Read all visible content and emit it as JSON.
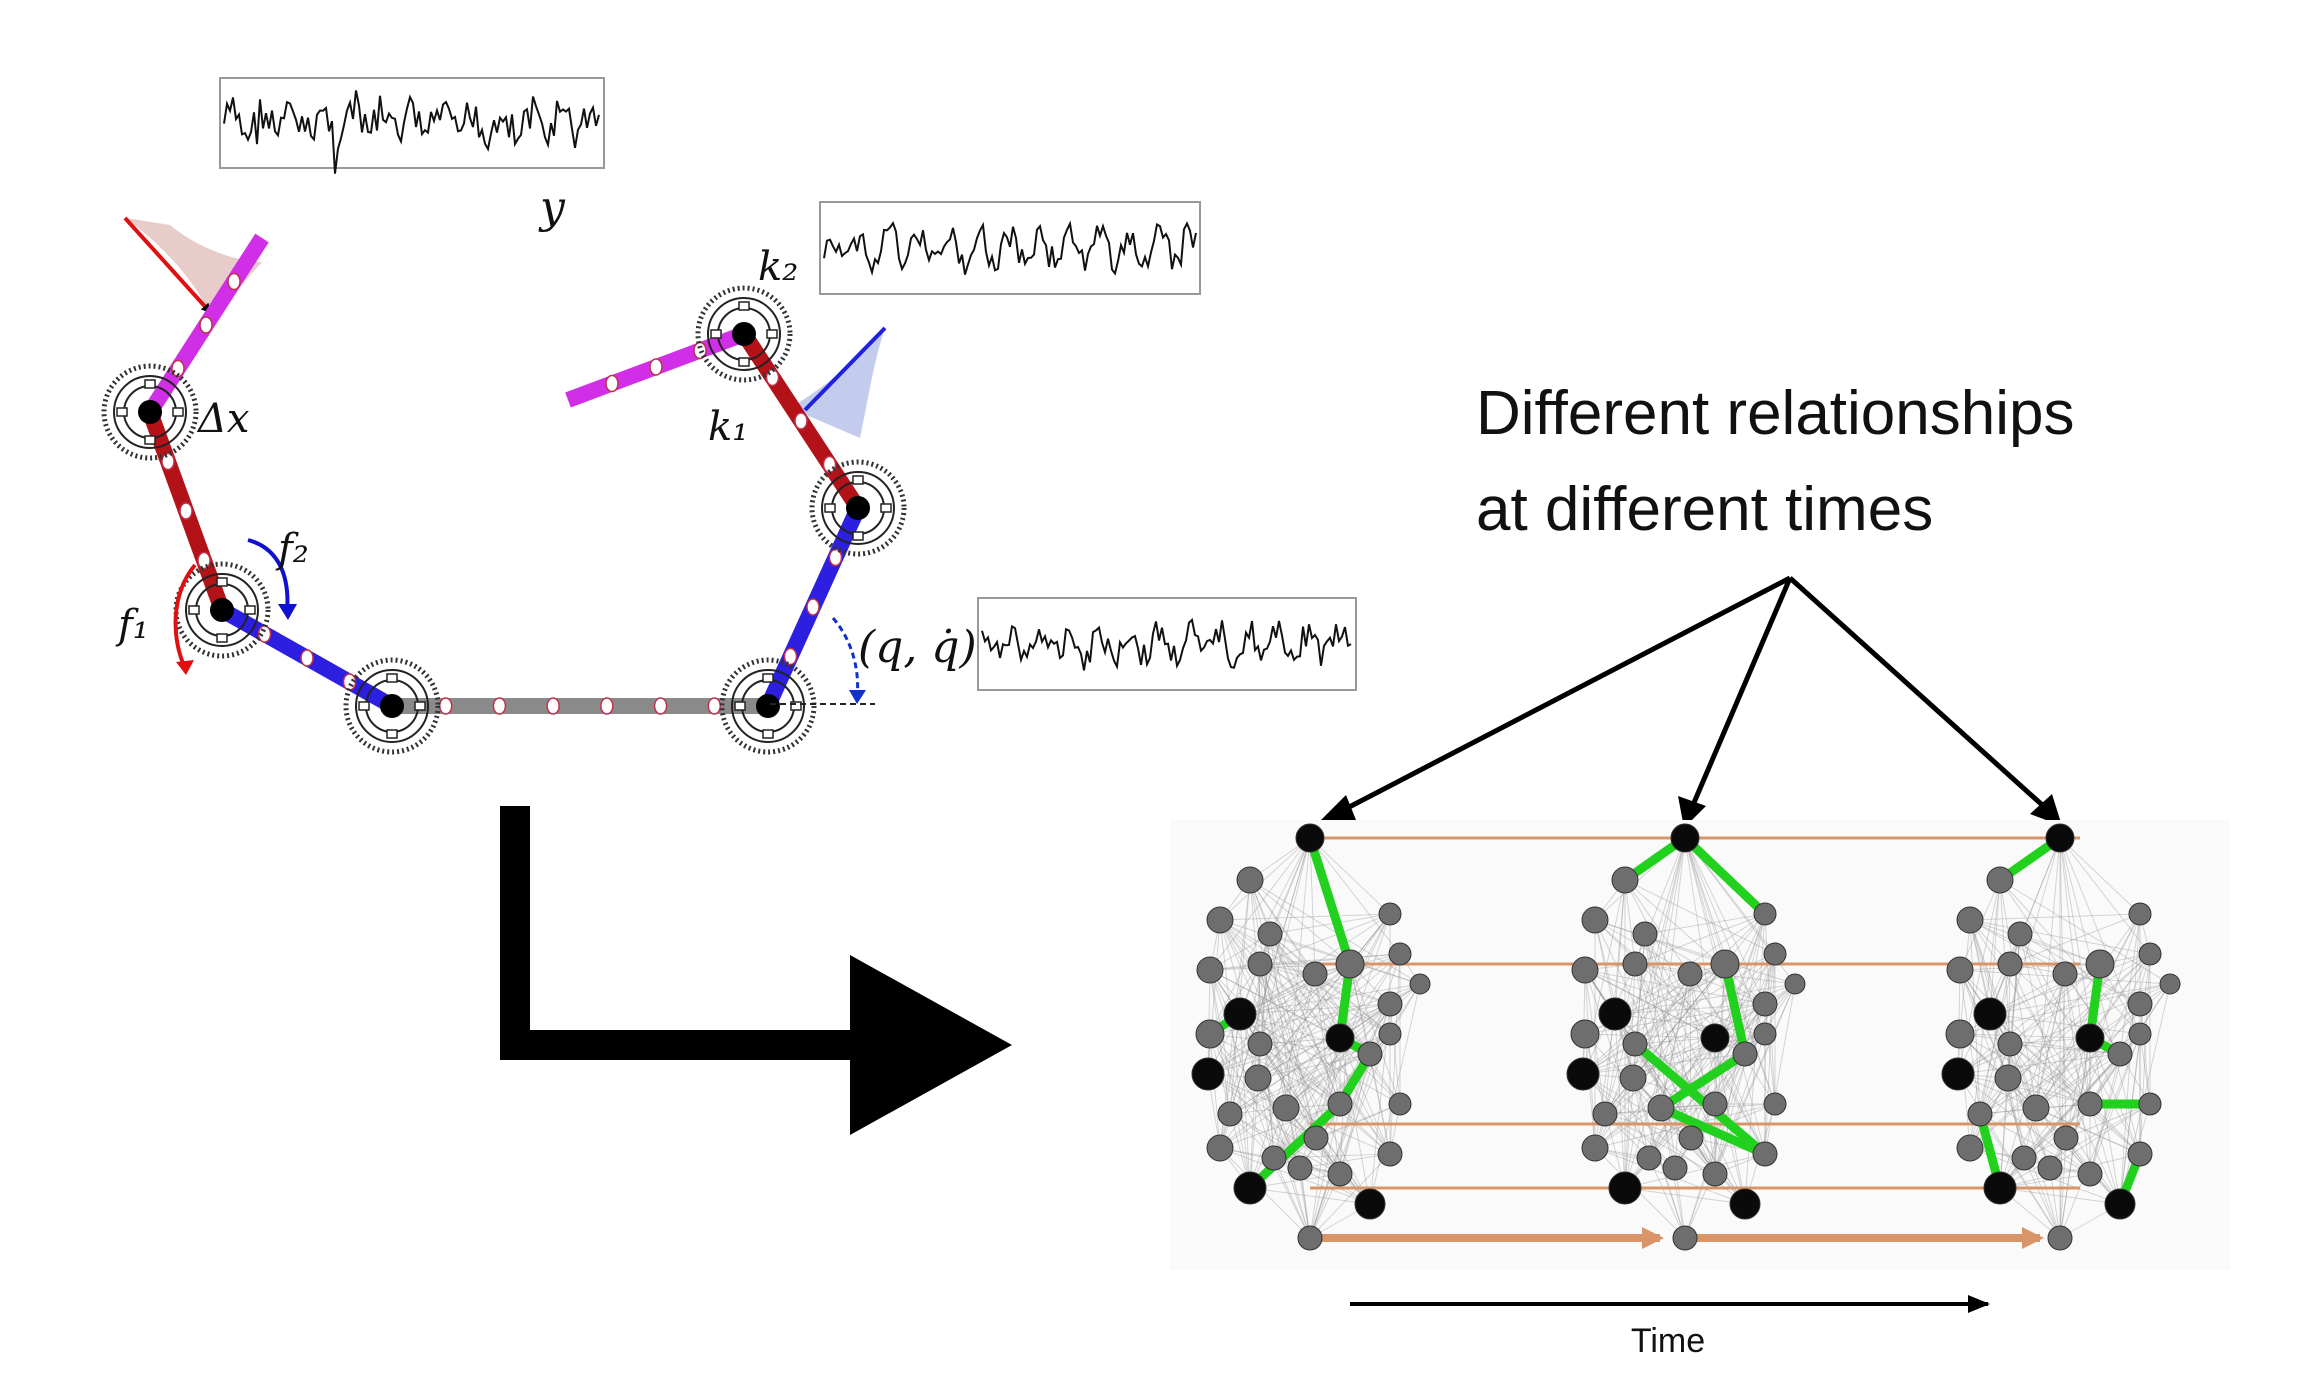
{
  "labels": {
    "y": "y",
    "k2": "k₂",
    "k1": "k₁",
    "dx": "Δx",
    "f1": "f₁",
    "f2": "f₂",
    "qqdot": "(q, q̇)",
    "relationships_line1": "Different relationships",
    "relationships_line2": "at different times",
    "time": "Time"
  },
  "colors": {
    "red_link": "#b31218",
    "blue_link": "#2c1fe0",
    "magenta_link": "#d12ee8",
    "gray_link": "#8a8a8a",
    "green_edge": "#22d11e",
    "orange_edge": "#d9956a",
    "node_dark": "#0a0a0a",
    "node_gray": "#6e6e6e"
  },
  "icons": [
    "gear-joint-icon",
    "arrow-icon",
    "signal-trace-icon"
  ]
}
